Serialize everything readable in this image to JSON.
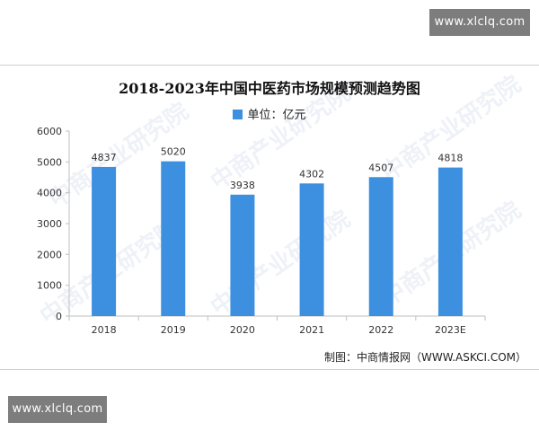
{
  "site_badge_top": "www.xlclq.com",
  "site_badge_bottom": "www.xlclq.com",
  "watermark_text": "中商产业研究院",
  "source": "制图：中商情报网（WWW.ASKCI.COM）",
  "colors": {
    "bar": "#3d8fe0",
    "badge": "#7d7d7d",
    "axis": "#bfbfbf"
  },
  "chart_data": {
    "type": "bar",
    "title": "2018-2023年中国中医药市场规模预测趋势图",
    "legend_label": "单位：亿元",
    "categories": [
      "2018",
      "2019",
      "2020",
      "2021",
      "2022",
      "2023E"
    ],
    "series": [
      {
        "name": "单位：亿元",
        "values": [
          4837,
          5020,
          3938,
          4302,
          4507,
          4818
        ]
      }
    ],
    "ylim": [
      0,
      6000
    ],
    "yticks": [
      "0",
      "1000",
      "2000",
      "3000",
      "4000",
      "5000",
      "6000"
    ],
    "grid": false,
    "legend_position": "top-center"
  }
}
